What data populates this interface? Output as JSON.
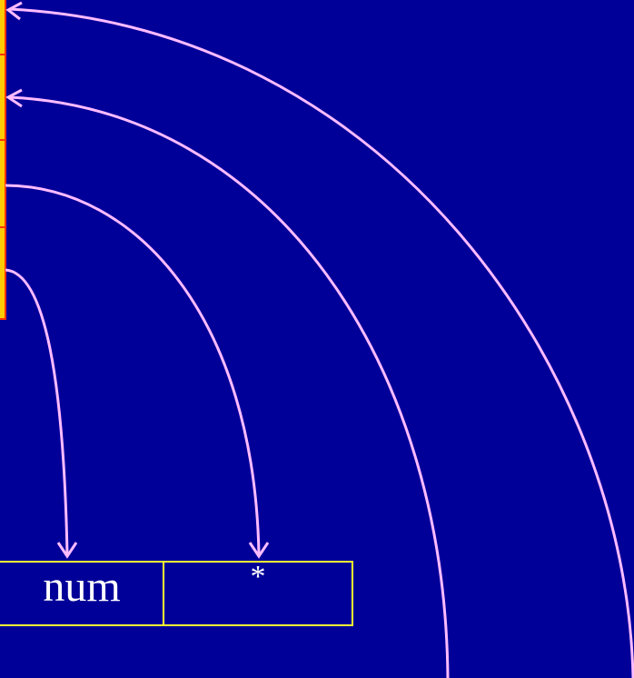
{
  "colors": {
    "background": "#000099",
    "arrow": "#ffbbff",
    "cell_border": "#ffff33",
    "stack_border": "#ff3300",
    "stack_fill": "#ffcc00",
    "text": "#ffffff"
  },
  "table": {
    "cells": [
      {
        "text": "num"
      },
      {
        "text": "*"
      }
    ]
  },
  "icons": {
    "arrowhead": "arrowhead-icon"
  }
}
